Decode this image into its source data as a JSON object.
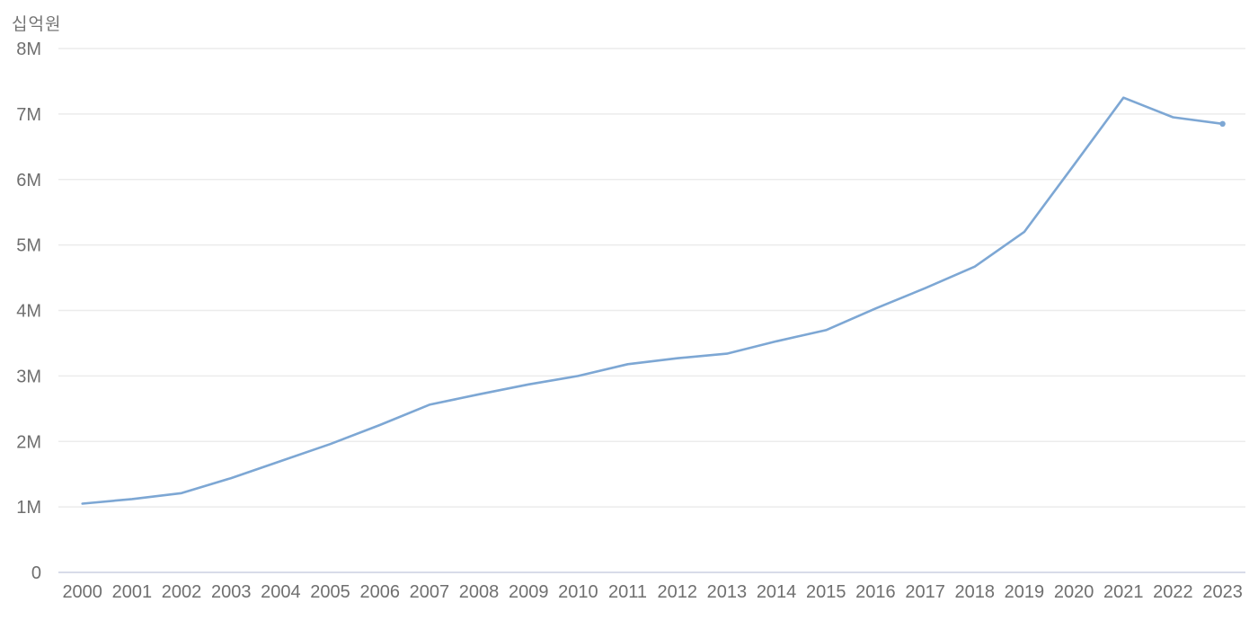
{
  "chart": {
    "unit_label": "십억원",
    "background": "#ffffff",
    "colors": {
      "line": "#7da7d4",
      "gridline": "#ececec",
      "zero_axis": "#d8dbe9",
      "tick_label": "#6f6f6f",
      "unit_label": "#757575"
    }
  },
  "chart_data": {
    "type": "line",
    "title": "",
    "ylabel": "십억원",
    "xlabel": "",
    "categories": [
      "2000",
      "2001",
      "2002",
      "2003",
      "2004",
      "2005",
      "2006",
      "2007",
      "2008",
      "2009",
      "2010",
      "2011",
      "2012",
      "2013",
      "2014",
      "2015",
      "2016",
      "2017",
      "2018",
      "2019",
      "2020",
      "2021",
      "2022",
      "2023"
    ],
    "values": [
      1.05,
      1.12,
      1.21,
      1.44,
      1.7,
      1.96,
      2.25,
      2.56,
      2.72,
      2.87,
      3.0,
      3.18,
      3.27,
      3.34,
      3.53,
      3.7,
      4.03,
      4.34,
      4.67,
      5.2,
      6.22,
      7.25,
      6.95,
      6.85
    ],
    "value_unit": "M",
    "ylim": [
      0,
      8
    ],
    "y_ticks": [
      "0",
      "1M",
      "2M",
      "3M",
      "4M",
      "5M",
      "6M",
      "7M",
      "8M"
    ],
    "grid": "horizontal",
    "legend_position": "none",
    "end_point_marker": true
  }
}
